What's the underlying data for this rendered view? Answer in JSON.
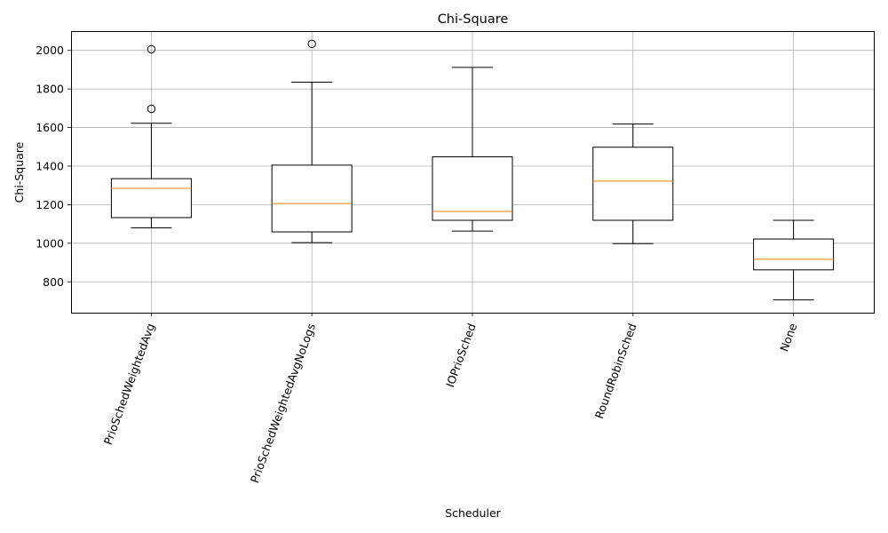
{
  "chart_data": {
    "type": "box",
    "title": "Chi-Square",
    "xlabel": "Scheduler",
    "ylabel": "Chi-Square",
    "ylim": [
      640,
      2100
    ],
    "yticks": [
      800,
      1000,
      1200,
      1400,
      1600,
      1800,
      2000
    ],
    "grid": true,
    "categories": [
      "PrioSchedWeightedAvg",
      "PrioSchedWeightedAvgNoLogs",
      "IOPrioSched",
      "RoundRobinSched",
      "None"
    ],
    "boxes": [
      {
        "category": "PrioSchedWeightedAvg",
        "whisker_low": 1080,
        "q1": 1133,
        "median": 1285,
        "q3": 1335,
        "whisker_high": 1622,
        "outliers": [
          1697,
          2006
        ]
      },
      {
        "category": "PrioSchedWeightedAvgNoLogs",
        "whisker_low": 1003,
        "q1": 1059,
        "median": 1206,
        "q3": 1405,
        "whisker_high": 1835,
        "outliers": [
          2034
        ]
      },
      {
        "category": "IOPrioSched",
        "whisker_low": 1063,
        "q1": 1119,
        "median": 1165,
        "q3": 1448,
        "whisker_high": 1912,
        "outliers": []
      },
      {
        "category": "RoundRobinSched",
        "whisker_low": 998,
        "q1": 1119,
        "median": 1322,
        "q3": 1498,
        "whisker_high": 1618,
        "outliers": []
      },
      {
        "category": "None",
        "whisker_low": 706,
        "q1": 862,
        "median": 917,
        "q3": 1022,
        "whisker_high": 1119,
        "outliers": []
      }
    ],
    "colors": {
      "box": "#000000",
      "median": "#ff7f0e",
      "grid": "#b0b0b0"
    }
  }
}
